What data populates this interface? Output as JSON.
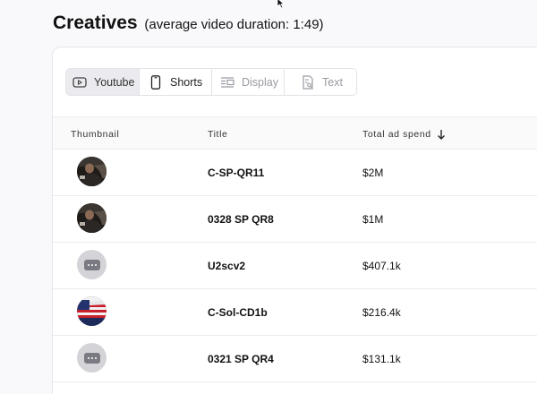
{
  "header": {
    "title": "Creatives",
    "subtitle": "(average video duration: 1:49)"
  },
  "tabs": [
    {
      "label": "Youtube",
      "icon": "play-icon",
      "state": "active"
    },
    {
      "label": "Shorts",
      "icon": "phone-icon",
      "state": "enabled"
    },
    {
      "label": "Display",
      "icon": "display-icon",
      "state": "disabled"
    },
    {
      "label": "Text",
      "icon": "text-doc-icon",
      "state": "disabled"
    }
  ],
  "table": {
    "columns": {
      "thumbnail": "Thumbnail",
      "title": "Title",
      "spend": "Total ad spend",
      "sort": "descending"
    },
    "rows": [
      {
        "thumbnail": "video-frame",
        "title": "C-SP-QR11",
        "spend": "$2M"
      },
      {
        "thumbnail": "video-frame",
        "title": "0328 SP QR8",
        "spend": "$1M"
      },
      {
        "thumbnail": "placeholder",
        "title": "U2scv2",
        "spend": "$407.1k"
      },
      {
        "thumbnail": "flag-frame",
        "title": "C-Sol-CD1b",
        "spend": "$216.4k"
      },
      {
        "thumbnail": "placeholder",
        "title": "0321 SP QR4",
        "spend": "$131.1k"
      }
    ]
  },
  "colors": {
    "background": "#f9f9fb",
    "active_tab": "#ebebef",
    "border": "#e3e3e8",
    "placeholder": "#d4d4d8"
  }
}
